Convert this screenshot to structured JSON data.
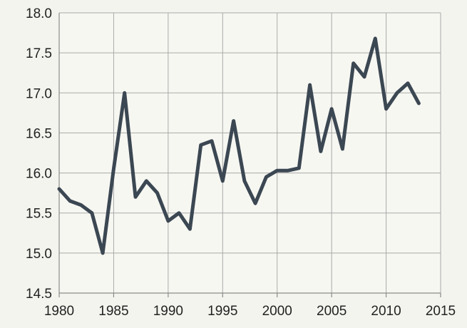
{
  "chart_data": {
    "type": "line",
    "title": "",
    "xlabel": "",
    "ylabel": "",
    "xlim": [
      1980,
      2015
    ],
    "ylim": [
      14.5,
      18.0
    ],
    "x_ticks": [
      1980,
      1985,
      1990,
      1995,
      2000,
      2005,
      2010,
      2015
    ],
    "y_ticks": [
      14.5,
      15.0,
      15.5,
      16.0,
      16.5,
      17.0,
      17.5,
      18.0
    ],
    "x_tick_labels": [
      "1980",
      "1985",
      "1990",
      "1995",
      "2000",
      "2005",
      "2010",
      "2015"
    ],
    "y_tick_labels": [
      "14.5",
      "15.0",
      "15.5",
      "16.0",
      "16.5",
      "17.0",
      "17.5",
      "18.0"
    ],
    "grid": true,
    "legend": "none",
    "line_color": "#3b4752",
    "series": [
      {
        "x": [
          1980,
          1981,
          1982,
          1983,
          1984,
          1985,
          1986,
          1987,
          1988,
          1989,
          1990,
          1991,
          1992,
          1993,
          1994,
          1995,
          1996,
          1997,
          1998,
          1999,
          2000,
          2001,
          2002,
          2003,
          2004,
          2005,
          2006,
          2007,
          2008,
          2009,
          2010,
          2011,
          2012,
          2013
        ],
        "values": [
          15.8,
          15.65,
          15.6,
          15.5,
          15.0,
          16.05,
          17.0,
          15.7,
          15.9,
          15.75,
          15.4,
          15.5,
          15.3,
          16.35,
          16.4,
          15.9,
          16.65,
          15.9,
          15.62,
          15.95,
          16.03,
          16.03,
          16.06,
          17.1,
          16.27,
          16.8,
          16.3,
          17.37,
          17.2,
          17.68,
          16.8,
          17.0,
          17.12,
          16.87
        ]
      }
    ]
  }
}
